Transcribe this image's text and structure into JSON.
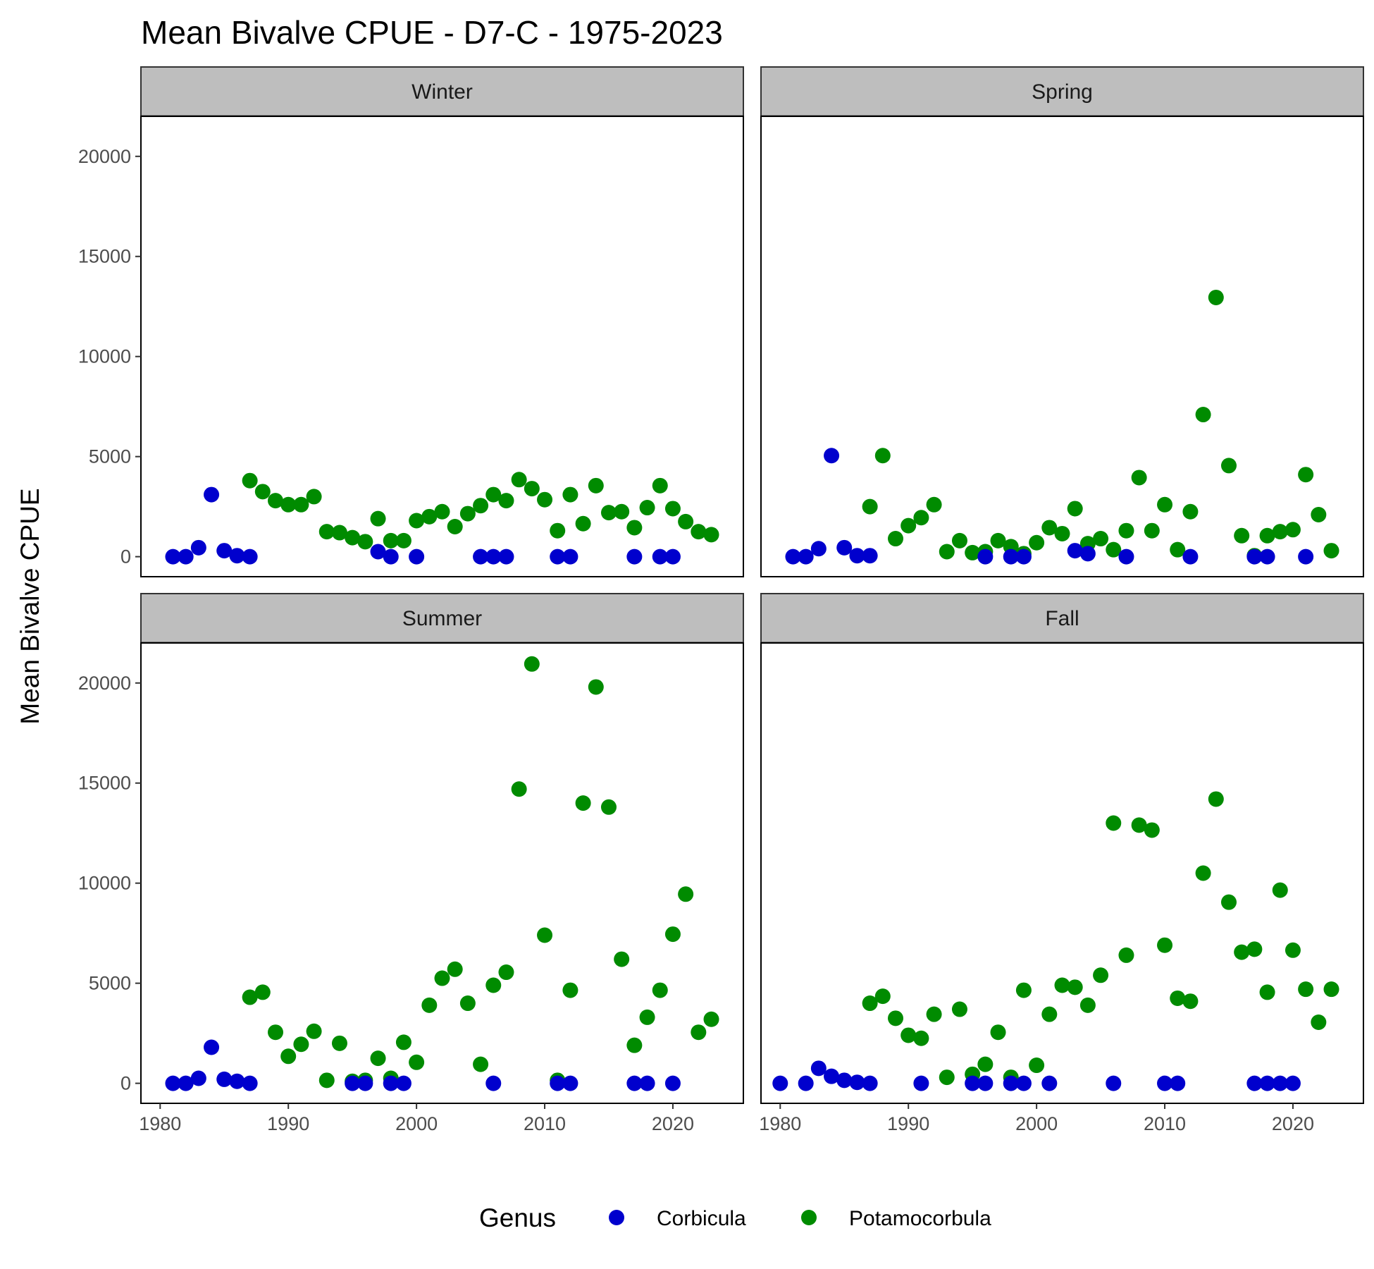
{
  "chart_data": {
    "type": "scatter",
    "title": "Mean Bivalve CPUE - D7-C - 1975-2023",
    "xlabel": "",
    "ylabel": "Mean Bivalve CPUE",
    "xlim": [
      1978.5,
      2025.5
    ],
    "ylim": [
      -1000,
      22000
    ],
    "x_ticks": [
      1980,
      1990,
      2000,
      2010,
      2020
    ],
    "y_ticks": [
      0,
      5000,
      10000,
      15000,
      20000
    ],
    "grid": false,
    "legend": {
      "title": "Genus",
      "position": "bottom",
      "entries": [
        {
          "name": "Corbicula",
          "color": "#0000cd"
        },
        {
          "name": "Potamocorbula",
          "color": "#008b00"
        }
      ]
    },
    "facets": [
      {
        "name": "Winter",
        "series": [
          {
            "name": "Corbicula",
            "points": [
              [
                1981,
                0
              ],
              [
                1982,
                0
              ],
              [
                1983,
                450
              ],
              [
                1984,
                3100
              ],
              [
                1985,
                300
              ],
              [
                1986,
                50
              ],
              [
                1987,
                0
              ],
              [
                1997,
                250
              ],
              [
                1998,
                0
              ],
              [
                2000,
                0
              ],
              [
                2005,
                0
              ],
              [
                2006,
                0
              ],
              [
                2007,
                0
              ],
              [
                2011,
                0
              ],
              [
                2012,
                0
              ],
              [
                2017,
                0
              ],
              [
                2019,
                0
              ],
              [
                2020,
                0
              ]
            ]
          },
          {
            "name": "Potamocorbula",
            "points": [
              [
                1987,
                3800
              ],
              [
                1988,
                3250
              ],
              [
                1989,
                2800
              ],
              [
                1990,
                2600
              ],
              [
                1991,
                2600
              ],
              [
                1992,
                3000
              ],
              [
                1993,
                1250
              ],
              [
                1994,
                1200
              ],
              [
                1995,
                950
              ],
              [
                1996,
                750
              ],
              [
                1997,
                1900
              ],
              [
                1998,
                800
              ],
              [
                1999,
                800
              ],
              [
                2000,
                1800
              ],
              [
                2001,
                2000
              ],
              [
                2002,
                2250
              ],
              [
                2003,
                1500
              ],
              [
                2004,
                2150
              ],
              [
                2005,
                2550
              ],
              [
                2006,
                3100
              ],
              [
                2007,
                2800
              ],
              [
                2008,
                3850
              ],
              [
                2009,
                3400
              ],
              [
                2010,
                2850
              ],
              [
                2011,
                1300
              ],
              [
                2012,
                3100
              ],
              [
                2013,
                1650
              ],
              [
                2014,
                3550
              ],
              [
                2015,
                2200
              ],
              [
                2016,
                2250
              ],
              [
                2017,
                1450
              ],
              [
                2018,
                2450
              ],
              [
                2019,
                3550
              ],
              [
                2020,
                2400
              ],
              [
                2021,
                1750
              ],
              [
                2022,
                1250
              ],
              [
                2023,
                1100
              ]
            ]
          }
        ]
      },
      {
        "name": "Spring",
        "series": [
          {
            "name": "Corbicula",
            "points": [
              [
                1981,
                0
              ],
              [
                1982,
                0
              ],
              [
                1983,
                400
              ],
              [
                1984,
                5050
              ],
              [
                1985,
                450
              ],
              [
                1986,
                50
              ],
              [
                1987,
                50
              ],
              [
                1996,
                0
              ],
              [
                1998,
                0
              ],
              [
                1999,
                0
              ],
              [
                2003,
                300
              ],
              [
                2004,
                150
              ],
              [
                2007,
                0
              ],
              [
                2012,
                0
              ],
              [
                2017,
                0
              ],
              [
                2018,
                0
              ],
              [
                2021,
                0
              ]
            ]
          },
          {
            "name": "Potamocorbula",
            "points": [
              [
                1987,
                2500
              ],
              [
                1988,
                5050
              ],
              [
                1989,
                900
              ],
              [
                1990,
                1550
              ],
              [
                1991,
                1950
              ],
              [
                1992,
                2600
              ],
              [
                1993,
                250
              ],
              [
                1994,
                800
              ],
              [
                1995,
                200
              ],
              [
                1996,
                250
              ],
              [
                1997,
                800
              ],
              [
                1998,
                500
              ],
              [
                1999,
                150
              ],
              [
                2000,
                700
              ],
              [
                2001,
                1450
              ],
              [
                2002,
                1150
              ],
              [
                2003,
                2400
              ],
              [
                2004,
                650
              ],
              [
                2005,
                900
              ],
              [
                2006,
                350
              ],
              [
                2007,
                1300
              ],
              [
                2008,
                3950
              ],
              [
                2009,
                1300
              ],
              [
                2010,
                2600
              ],
              [
                2011,
                350
              ],
              [
                2012,
                2250
              ],
              [
                2013,
                7100
              ],
              [
                2014,
                12950
              ],
              [
                2015,
                4550
              ],
              [
                2016,
                1050
              ],
              [
                2017,
                50
              ],
              [
                2018,
                1050
              ],
              [
                2019,
                1250
              ],
              [
                2020,
                1350
              ],
              [
                2021,
                4100
              ],
              [
                2022,
                2100
              ],
              [
                2023,
                300
              ]
            ]
          }
        ]
      },
      {
        "name": "Summer",
        "series": [
          {
            "name": "Corbicula",
            "points": [
              [
                1981,
                0
              ],
              [
                1982,
                0
              ],
              [
                1983,
                250
              ],
              [
                1984,
                1800
              ],
              [
                1985,
                200
              ],
              [
                1986,
                100
              ],
              [
                1987,
                0
              ],
              [
                1995,
                0
              ],
              [
                1996,
                0
              ],
              [
                1998,
                0
              ],
              [
                1999,
                0
              ],
              [
                2006,
                0
              ],
              [
                2011,
                0
              ],
              [
                2012,
                0
              ],
              [
                2017,
                0
              ],
              [
                2018,
                0
              ],
              [
                2020,
                0
              ]
            ]
          },
          {
            "name": "Potamocorbula",
            "points": [
              [
                1987,
                4300
              ],
              [
                1988,
                4550
              ],
              [
                1989,
                2550
              ],
              [
                1990,
                1350
              ],
              [
                1991,
                1950
              ],
              [
                1992,
                2600
              ],
              [
                1993,
                150
              ],
              [
                1994,
                2000
              ],
              [
                1995,
                100
              ],
              [
                1996,
                150
              ],
              [
                1997,
                1250
              ],
              [
                1998,
                250
              ],
              [
                1999,
                2050
              ],
              [
                2000,
                1050
              ],
              [
                2001,
                3900
              ],
              [
                2002,
                5250
              ],
              [
                2003,
                5700
              ],
              [
                2004,
                4000
              ],
              [
                2005,
                950
              ],
              [
                2006,
                4900
              ],
              [
                2007,
                5550
              ],
              [
                2008,
                14700
              ],
              [
                2009,
                20950
              ],
              [
                2010,
                7400
              ],
              [
                2011,
                150
              ],
              [
                2012,
                4650
              ],
              [
                2013,
                14000
              ],
              [
                2014,
                19800
              ],
              [
                2015,
                13800
              ],
              [
                2016,
                6200
              ],
              [
                2017,
                1900
              ],
              [
                2018,
                3300
              ],
              [
                2019,
                4650
              ],
              [
                2020,
                7450
              ],
              [
                2021,
                9450
              ],
              [
                2022,
                2550
              ],
              [
                2023,
                3200
              ]
            ]
          }
        ]
      },
      {
        "name": "Fall",
        "series": [
          {
            "name": "Corbicula",
            "points": [
              [
                1980,
                0
              ],
              [
                1982,
                0
              ],
              [
                1983,
                750
              ],
              [
                1984,
                350
              ],
              [
                1985,
                150
              ],
              [
                1986,
                50
              ],
              [
                1987,
                0
              ],
              [
                1991,
                0
              ],
              [
                1995,
                0
              ],
              [
                1996,
                0
              ],
              [
                1998,
                0
              ],
              [
                1999,
                0
              ],
              [
                2001,
                0
              ],
              [
                2006,
                0
              ],
              [
                2010,
                0
              ],
              [
                2011,
                0
              ],
              [
                2017,
                0
              ],
              [
                2018,
                0
              ],
              [
                2019,
                0
              ],
              [
                2020,
                0
              ]
            ]
          },
          {
            "name": "Potamocorbula",
            "points": [
              [
                1987,
                4000
              ],
              [
                1988,
                4350
              ],
              [
                1989,
                3250
              ],
              [
                1990,
                2400
              ],
              [
                1991,
                2250
              ],
              [
                1992,
                3450
              ],
              [
                1993,
                300
              ],
              [
                1994,
                3700
              ],
              [
                1995,
                450
              ],
              [
                1996,
                950
              ],
              [
                1997,
                2550
              ],
              [
                1998,
                300
              ],
              [
                1999,
                4650
              ],
              [
                2000,
                900
              ],
              [
                2001,
                3450
              ],
              [
                2002,
                4900
              ],
              [
                2003,
                4800
              ],
              [
                2004,
                3900
              ],
              [
                2005,
                5400
              ],
              [
                2006,
                13000
              ],
              [
                2007,
                6400
              ],
              [
                2008,
                12900
              ],
              [
                2009,
                12650
              ],
              [
                2010,
                6900
              ],
              [
                2011,
                4250
              ],
              [
                2012,
                4100
              ],
              [
                2013,
                10500
              ],
              [
                2014,
                14200
              ],
              [
                2015,
                9050
              ],
              [
                2016,
                6550
              ],
              [
                2017,
                6700
              ],
              [
                2018,
                4550
              ],
              [
                2019,
                9650
              ],
              [
                2020,
                6650
              ],
              [
                2021,
                4700
              ],
              [
                2022,
                3050
              ],
              [
                2023,
                4700
              ]
            ]
          }
        ]
      }
    ]
  }
}
